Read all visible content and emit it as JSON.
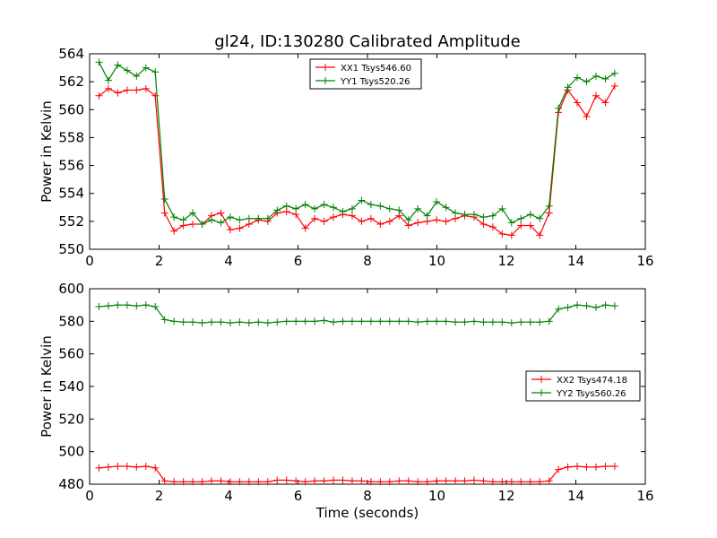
{
  "title": "gl24, ID:130280 Calibrated Amplitude",
  "chart_data": [
    {
      "type": "line",
      "ylabel": "Power in Kelvin",
      "xlabel": "",
      "xlim": [
        0,
        16
      ],
      "ylim": [
        550,
        564
      ],
      "xticks": [
        "0",
        "2",
        "4",
        "6",
        "8",
        "10",
        "12",
        "14",
        "16"
      ],
      "yticks": [
        "550",
        "552",
        "554",
        "556",
        "558",
        "560",
        "562",
        "564"
      ],
      "grid": false,
      "legend_position": "upper-center",
      "x": [
        0.27,
        0.54,
        0.81,
        1.08,
        1.35,
        1.62,
        1.89,
        2.16,
        2.43,
        2.7,
        2.97,
        3.24,
        3.51,
        3.78,
        4.05,
        4.32,
        4.59,
        4.86,
        5.13,
        5.4,
        5.67,
        5.94,
        6.21,
        6.48,
        6.75,
        7.02,
        7.29,
        7.56,
        7.83,
        8.1,
        8.37,
        8.64,
        8.91,
        9.18,
        9.45,
        9.72,
        9.99,
        10.26,
        10.53,
        10.8,
        11.07,
        11.34,
        11.61,
        11.88,
        12.15,
        12.42,
        12.69,
        12.96,
        13.23,
        13.5,
        13.77,
        14.04,
        14.31,
        14.58,
        14.85,
        15.12
      ],
      "series": [
        {
          "name": "XX1 Tsys546.60",
          "color": "#ff0000",
          "values": [
            561.0,
            561.5,
            561.2,
            561.4,
            561.4,
            561.5,
            561.0,
            552.6,
            551.3,
            551.7,
            551.8,
            551.8,
            552.4,
            552.6,
            551.4,
            551.5,
            551.8,
            552.1,
            552.0,
            552.6,
            552.7,
            552.5,
            551.5,
            552.2,
            552.0,
            552.3,
            552.5,
            552.4,
            552.0,
            552.2,
            551.8,
            552.0,
            552.4,
            551.7,
            551.9,
            552.0,
            552.1,
            552.0,
            552.2,
            552.4,
            552.3,
            551.8,
            551.6,
            551.1,
            551.0,
            551.7,
            551.7,
            551.0,
            552.6,
            559.8,
            561.4,
            560.5,
            559.5,
            561.0,
            560.5,
            561.7
          ]
        },
        {
          "name": "YY1 Tsys520.26",
          "color": "#008000",
          "values": [
            563.4,
            562.1,
            563.2,
            562.8,
            562.4,
            563.0,
            562.7,
            553.6,
            552.3,
            552.1,
            552.6,
            551.8,
            552.1,
            551.9,
            552.3,
            552.1,
            552.2,
            552.2,
            552.2,
            552.8,
            553.1,
            552.9,
            553.2,
            552.9,
            553.2,
            553.0,
            552.7,
            552.9,
            553.5,
            553.2,
            553.1,
            552.9,
            552.8,
            552.1,
            552.9,
            552.4,
            553.4,
            553.0,
            552.6,
            552.5,
            552.5,
            552.3,
            552.4,
            552.9,
            551.9,
            552.2,
            552.5,
            552.2,
            553.1,
            560.1,
            561.6,
            562.3,
            562.0,
            562.4,
            562.2,
            562.6
          ]
        }
      ]
    },
    {
      "type": "line",
      "ylabel": "Power in Kelvin",
      "xlabel": "Time (seconds)",
      "xlim": [
        0,
        16
      ],
      "ylim": [
        480,
        600
      ],
      "xticks": [
        "0",
        "2",
        "4",
        "6",
        "8",
        "10",
        "12",
        "14",
        "16"
      ],
      "yticks": [
        "480",
        "500",
        "520",
        "540",
        "560",
        "580",
        "600"
      ],
      "grid": false,
      "legend_position": "center-right",
      "x": [
        0.27,
        0.54,
        0.81,
        1.08,
        1.35,
        1.62,
        1.89,
        2.16,
        2.43,
        2.7,
        2.97,
        3.24,
        3.51,
        3.78,
        4.05,
        4.32,
        4.59,
        4.86,
        5.13,
        5.4,
        5.67,
        5.94,
        6.21,
        6.48,
        6.75,
        7.02,
        7.29,
        7.56,
        7.83,
        8.1,
        8.37,
        8.64,
        8.91,
        9.18,
        9.45,
        9.72,
        9.99,
        10.26,
        10.53,
        10.8,
        11.07,
        11.34,
        11.61,
        11.88,
        12.15,
        12.42,
        12.69,
        12.96,
        13.23,
        13.5,
        13.77,
        14.04,
        14.31,
        14.58,
        14.85,
        15.12
      ],
      "series": [
        {
          "name": "XX2 Tsys474.18",
          "color": "#ff0000",
          "values": [
            490.0,
            490.5,
            491.0,
            491.0,
            490.5,
            491.0,
            490.0,
            482.0,
            481.5,
            481.5,
            481.5,
            481.5,
            482.0,
            482.0,
            481.5,
            481.5,
            481.5,
            481.5,
            481.5,
            482.5,
            482.5,
            482.0,
            481.5,
            482.0,
            482.0,
            482.5,
            482.5,
            482.0,
            482.0,
            481.5,
            481.5,
            481.5,
            482.0,
            482.0,
            481.5,
            481.5,
            482.0,
            482.0,
            482.0,
            482.0,
            482.5,
            482.0,
            481.5,
            481.5,
            481.5,
            481.5,
            481.5,
            481.5,
            482.0,
            489.0,
            490.5,
            491.0,
            490.5,
            490.5,
            491.0,
            491.0
          ]
        },
        {
          "name": "YY2 Tsys560.26",
          "color": "#008000",
          "values": [
            589.0,
            589.5,
            590.0,
            590.0,
            589.5,
            590.0,
            589.0,
            581.0,
            580.0,
            579.5,
            579.5,
            579.0,
            579.5,
            579.5,
            579.0,
            579.5,
            579.0,
            579.5,
            579.0,
            579.5,
            580.0,
            580.0,
            580.0,
            580.0,
            580.5,
            579.5,
            580.0,
            580.0,
            580.0,
            580.0,
            580.0,
            580.0,
            580.0,
            580.0,
            579.5,
            580.0,
            580.0,
            580.0,
            579.5,
            579.5,
            580.0,
            579.5,
            579.5,
            579.5,
            579.0,
            579.5,
            579.5,
            579.5,
            580.0,
            587.5,
            588.5,
            590.0,
            589.5,
            588.5,
            590.0,
            589.5
          ]
        }
      ]
    }
  ]
}
